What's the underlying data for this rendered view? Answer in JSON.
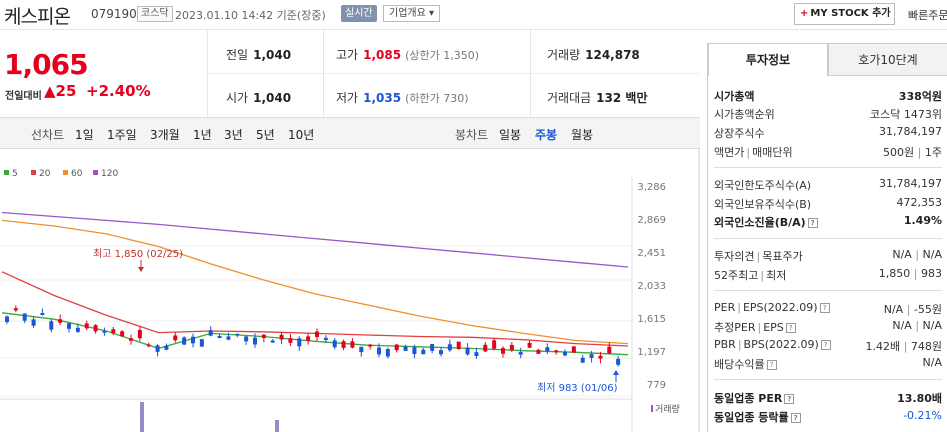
{
  "header": {
    "name": "케스피온",
    "code": "079190",
    "market": "코스닥",
    "datetime": "2023.01.10 14:42 기준(장중)",
    "realtime": "실시간",
    "company_overview": "기업개요",
    "mystock": "MY STOCK 추가",
    "quick_order": "빠른주문"
  },
  "price": {
    "current": "1,065",
    "change_label": "전일대비",
    "change_value": "25",
    "change_pct": "+2.40%",
    "color_up": "#e6001d",
    "color_down": "#1a56d6"
  },
  "quotes": {
    "prev_close": {
      "label": "전일",
      "value": "1,040"
    },
    "open": {
      "label": "시가",
      "value": "1,040"
    },
    "high": {
      "label": "고가",
      "value": "1,085",
      "sub": "(상한가 1,350)"
    },
    "low": {
      "label": "저가",
      "value": "1,035",
      "sub": "(하한가 730)"
    },
    "volume": {
      "label": "거래량",
      "value": "124,878"
    },
    "amount": {
      "label": "거래대금",
      "value": "132 백만"
    }
  },
  "period_bar": {
    "line_chart_label": "선차트",
    "line_tabs": [
      "1일",
      "1주일",
      "3개월",
      "1년",
      "3년",
      "5년",
      "10년"
    ],
    "candle_label": "봉차트",
    "candle_tabs": [
      "일봉",
      "주봉",
      "월봉"
    ],
    "selected_candle": "주봉"
  },
  "chart": {
    "legend": [
      {
        "label": "5",
        "color": "#3aa83a"
      },
      {
        "label": "20",
        "color": "#e04040"
      },
      {
        "label": "60",
        "color": "#f0902a"
      },
      {
        "label": "120",
        "color": "#9a55c8"
      }
    ],
    "y_ticks": [
      "3,286",
      "2,869",
      "2,451",
      "2,033",
      "1,615",
      "1,197",
      "779"
    ],
    "high_annotation": "최고 1,850 (02/25)",
    "low_annotation": "최저 983 (01/06)",
    "volume_label": "거래량"
  },
  "chart_data": {
    "type": "candlestick",
    "y_ticks": [
      3286,
      2869,
      2451,
      2033,
      1615,
      1197,
      779
    ],
    "ylim": [
      779,
      3286
    ],
    "ma_legend": [
      "5",
      "20",
      "60",
      "120"
    ],
    "annotations": [
      {
        "label": "최고 1,850 (02/25)",
        "value": 1850
      },
      {
        "label": "최저 983 (01/06)",
        "value": 983
      }
    ],
    "ma120": [
      2950,
      2900,
      2850,
      2800,
      2740,
      2680,
      2620,
      2560,
      2500,
      2440,
      2380,
      2320,
      2260
    ],
    "ma60": [
      2850,
      2780,
      2680,
      2520,
      2300,
      2100,
      1920,
      1780,
      1640,
      1520,
      1420,
      1330,
      1290
    ],
    "ma20": [
      2200,
      1900,
      1650,
      1430,
      1450,
      1440,
      1420,
      1400,
      1380,
      1370,
      1340,
      1290,
      1260
    ],
    "ma5": [
      1680,
      1600,
      1450,
      1230,
      1420,
      1380,
      1320,
      1270,
      1250,
      1230,
      1200,
      1180,
      1150
    ]
  },
  "right_panel": {
    "tabs": [
      "투자정보",
      "호가10단계"
    ],
    "rows": [
      {
        "k": "시가총액",
        "v": "338억원",
        "kbold": true,
        "vbold": true
      },
      {
        "k": "시가총액순위",
        "v": "코스닥 1473위"
      },
      {
        "k": "상장주식수",
        "v": "31,784,197"
      },
      {
        "k": "액면가",
        "k2": "매매단위",
        "v": "500원",
        "v2": "1주"
      },
      {
        "k": "외국인한도주식수(A)",
        "v": "31,784,197"
      },
      {
        "k": "외국인보유주식수(B)",
        "v": "472,353"
      },
      {
        "k": "외국인소진율(B/A)",
        "v": "1.49%",
        "kbold": true,
        "vbold": true,
        "hint": true
      },
      {
        "k": "투자의견",
        "k2": "목표주가",
        "v": "N/A",
        "v2": "N/A"
      },
      {
        "k": "52주최고",
        "k2": "최저",
        "v": "1,850",
        "v2": "983"
      },
      {
        "k": "PER",
        "k2": "EPS(2022.09)",
        "v": "N/A",
        "v2": "-55원",
        "hint": true
      },
      {
        "k": "추정PER",
        "k2": "EPS",
        "v": "N/A",
        "v2": "N/A",
        "hint": true
      },
      {
        "k": "PBR",
        "k2": "BPS(2022.09)",
        "v": "1.42배",
        "v2": "748원",
        "hint": true
      },
      {
        "k": "배당수익률",
        "v": "N/A",
        "hint": true
      },
      {
        "k": "동일업종 PER",
        "v": "13.80배",
        "kbold": true,
        "vbold": true,
        "hint": true
      },
      {
        "k": "동일업종 등락률",
        "v": "-0.21%",
        "kbold": true,
        "vblue": true,
        "hint": true
      }
    ]
  }
}
